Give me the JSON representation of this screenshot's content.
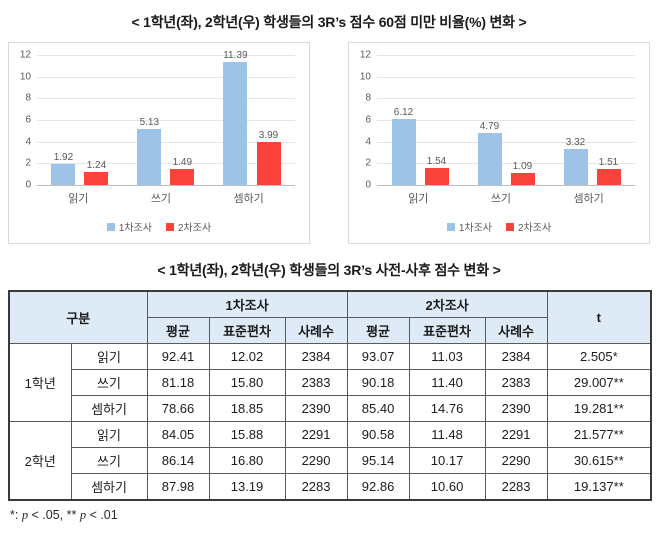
{
  "chart_section": {
    "title": "< 1학년(좌), 2학년(우) 학생들의 3R’s 점수 60점 미만 비율(%) 변화 >"
  },
  "table_section": {
    "title": "< 1학년(좌), 2학년(우) 학생들의 3R’s 사전-사후 점수 변화 >"
  },
  "colors": {
    "series1": "#9DC3E6",
    "series2": "#F9423A",
    "table_header_bg": "#DEEAF6"
  },
  "chart_data": [
    {
      "type": "bar",
      "title": "1학년",
      "categories": [
        "읽기",
        "쓰기",
        "셈하기"
      ],
      "series": [
        {
          "name": "1차조사",
          "color": "#9DC3E6",
          "values": [
            1.92,
            5.13,
            11.39
          ]
        },
        {
          "name": "2차조사",
          "color": "#F9423A",
          "values": [
            1.24,
            1.49,
            3.99
          ]
        }
      ],
      "ylim": [
        0,
        12
      ],
      "yticks": [
        0,
        2,
        4,
        6,
        8,
        10,
        12
      ],
      "grid": true,
      "legend_position": "bottom"
    },
    {
      "type": "bar",
      "title": "2학년",
      "categories": [
        "읽기",
        "쓰기",
        "셈하기"
      ],
      "series": [
        {
          "name": "1차조사",
          "color": "#9DC3E6",
          "values": [
            6.12,
            4.79,
            3.32
          ]
        },
        {
          "name": "2차조사",
          "color": "#F9423A",
          "values": [
            1.54,
            1.09,
            1.51
          ]
        }
      ],
      "ylim": [
        0,
        12
      ],
      "yticks": [
        0,
        2,
        4,
        6,
        8,
        10,
        12
      ],
      "grid": true,
      "legend_position": "bottom"
    }
  ],
  "table": {
    "group_header": "구분",
    "survey1_header": "1차조사",
    "survey2_header": "2차조사",
    "t_header": "t",
    "sub_headers": [
      "평균",
      "표준편차",
      "사례수"
    ],
    "rows": [
      {
        "grade": "1학년",
        "subject": "읽기",
        "s1": [
          "92.41",
          "12.02",
          "2384"
        ],
        "s2": [
          "93.07",
          "11.03",
          "2384"
        ],
        "t": "2.505*"
      },
      {
        "grade": "1학년",
        "subject": "쓰기",
        "s1": [
          "81.18",
          "15.80",
          "2383"
        ],
        "s2": [
          "90.18",
          "11.40",
          "2383"
        ],
        "t": "29.007**"
      },
      {
        "grade": "1학년",
        "subject": "셈하기",
        "s1": [
          "78.66",
          "18.85",
          "2390"
        ],
        "s2": [
          "85.40",
          "14.76",
          "2390"
        ],
        "t": "19.281**"
      },
      {
        "grade": "2학년",
        "subject": "읽기",
        "s1": [
          "84.05",
          "15.88",
          "2291"
        ],
        "s2": [
          "90.58",
          "11.48",
          "2291"
        ],
        "t": "21.577**"
      },
      {
        "grade": "2학년",
        "subject": "쓰기",
        "s1": [
          "86.14",
          "16.80",
          "2290"
        ],
        "s2": [
          "95.14",
          "10.17",
          "2290"
        ],
        "t": "30.615**"
      },
      {
        "grade": "2학년",
        "subject": "셈하기",
        "s1": [
          "87.98",
          "13.19",
          "2283"
        ],
        "s2": [
          "92.86",
          "10.60",
          "2283"
        ],
        "t": "19.137**"
      }
    ]
  },
  "footnote": {
    "seg1": "*: ",
    "p1": "p",
    "seg2": "  <  .05, ** ",
    "p2": "p",
    "seg3": "  <  .01"
  }
}
